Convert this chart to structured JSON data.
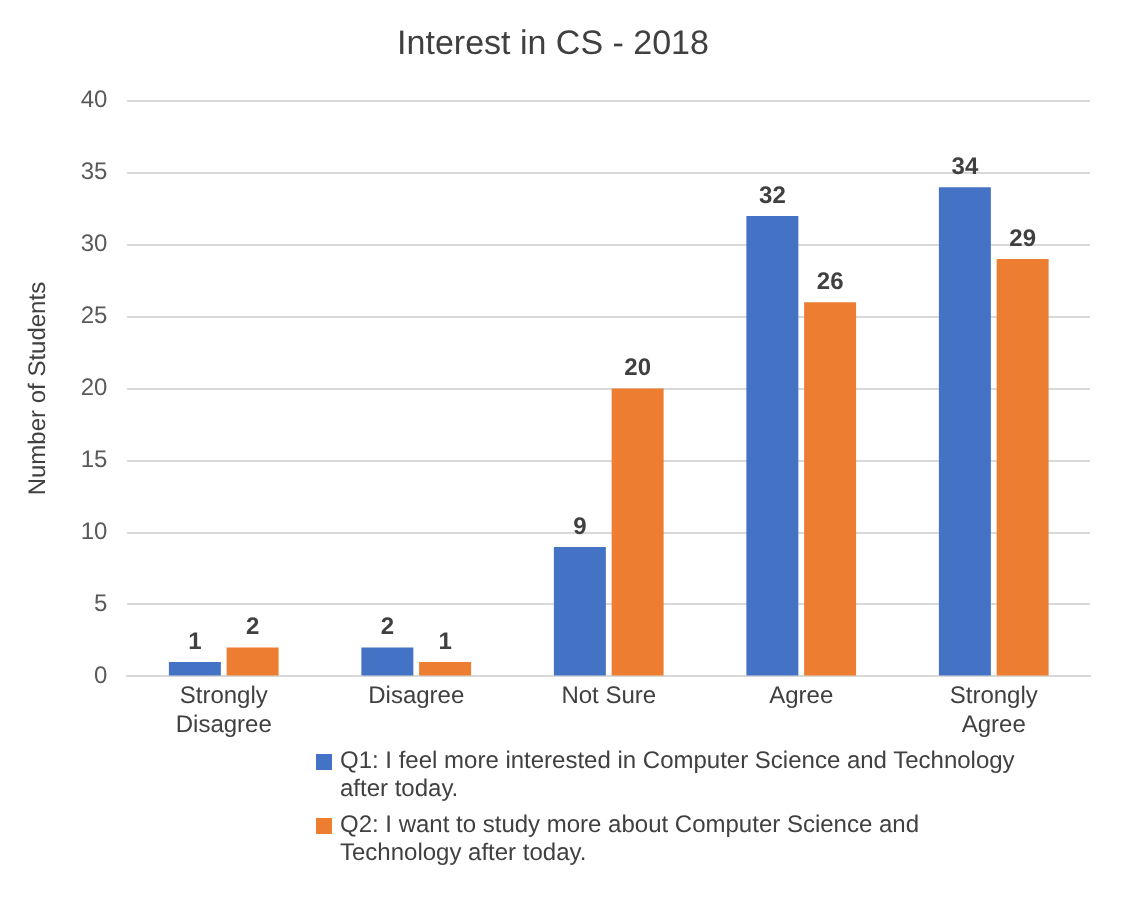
{
  "chart_data": {
    "type": "bar",
    "title": "Interest in CS - 2018",
    "ylabel": "Number of Students",
    "categories": [
      "Strongly Disagree",
      "Disagree",
      "Not Sure",
      "Agree",
      "Strongly Agree"
    ],
    "series": [
      {
        "name": "Q1:  I feel more interested in Computer Science and Technology after today.",
        "color": "#4472c4",
        "values": [
          1,
          2,
          9,
          32,
          34
        ]
      },
      {
        "name": "Q2:  I want to study more about Computer Science and Technology after today.",
        "color": "#ed7d31",
        "values": [
          2,
          1,
          20,
          26,
          29
        ]
      }
    ],
    "ylim": [
      0,
      40
    ],
    "yticks": [
      0,
      5,
      10,
      15,
      20,
      25,
      30,
      35,
      40
    ],
    "grid": "y",
    "legend": "bottom",
    "data_labels": true
  }
}
